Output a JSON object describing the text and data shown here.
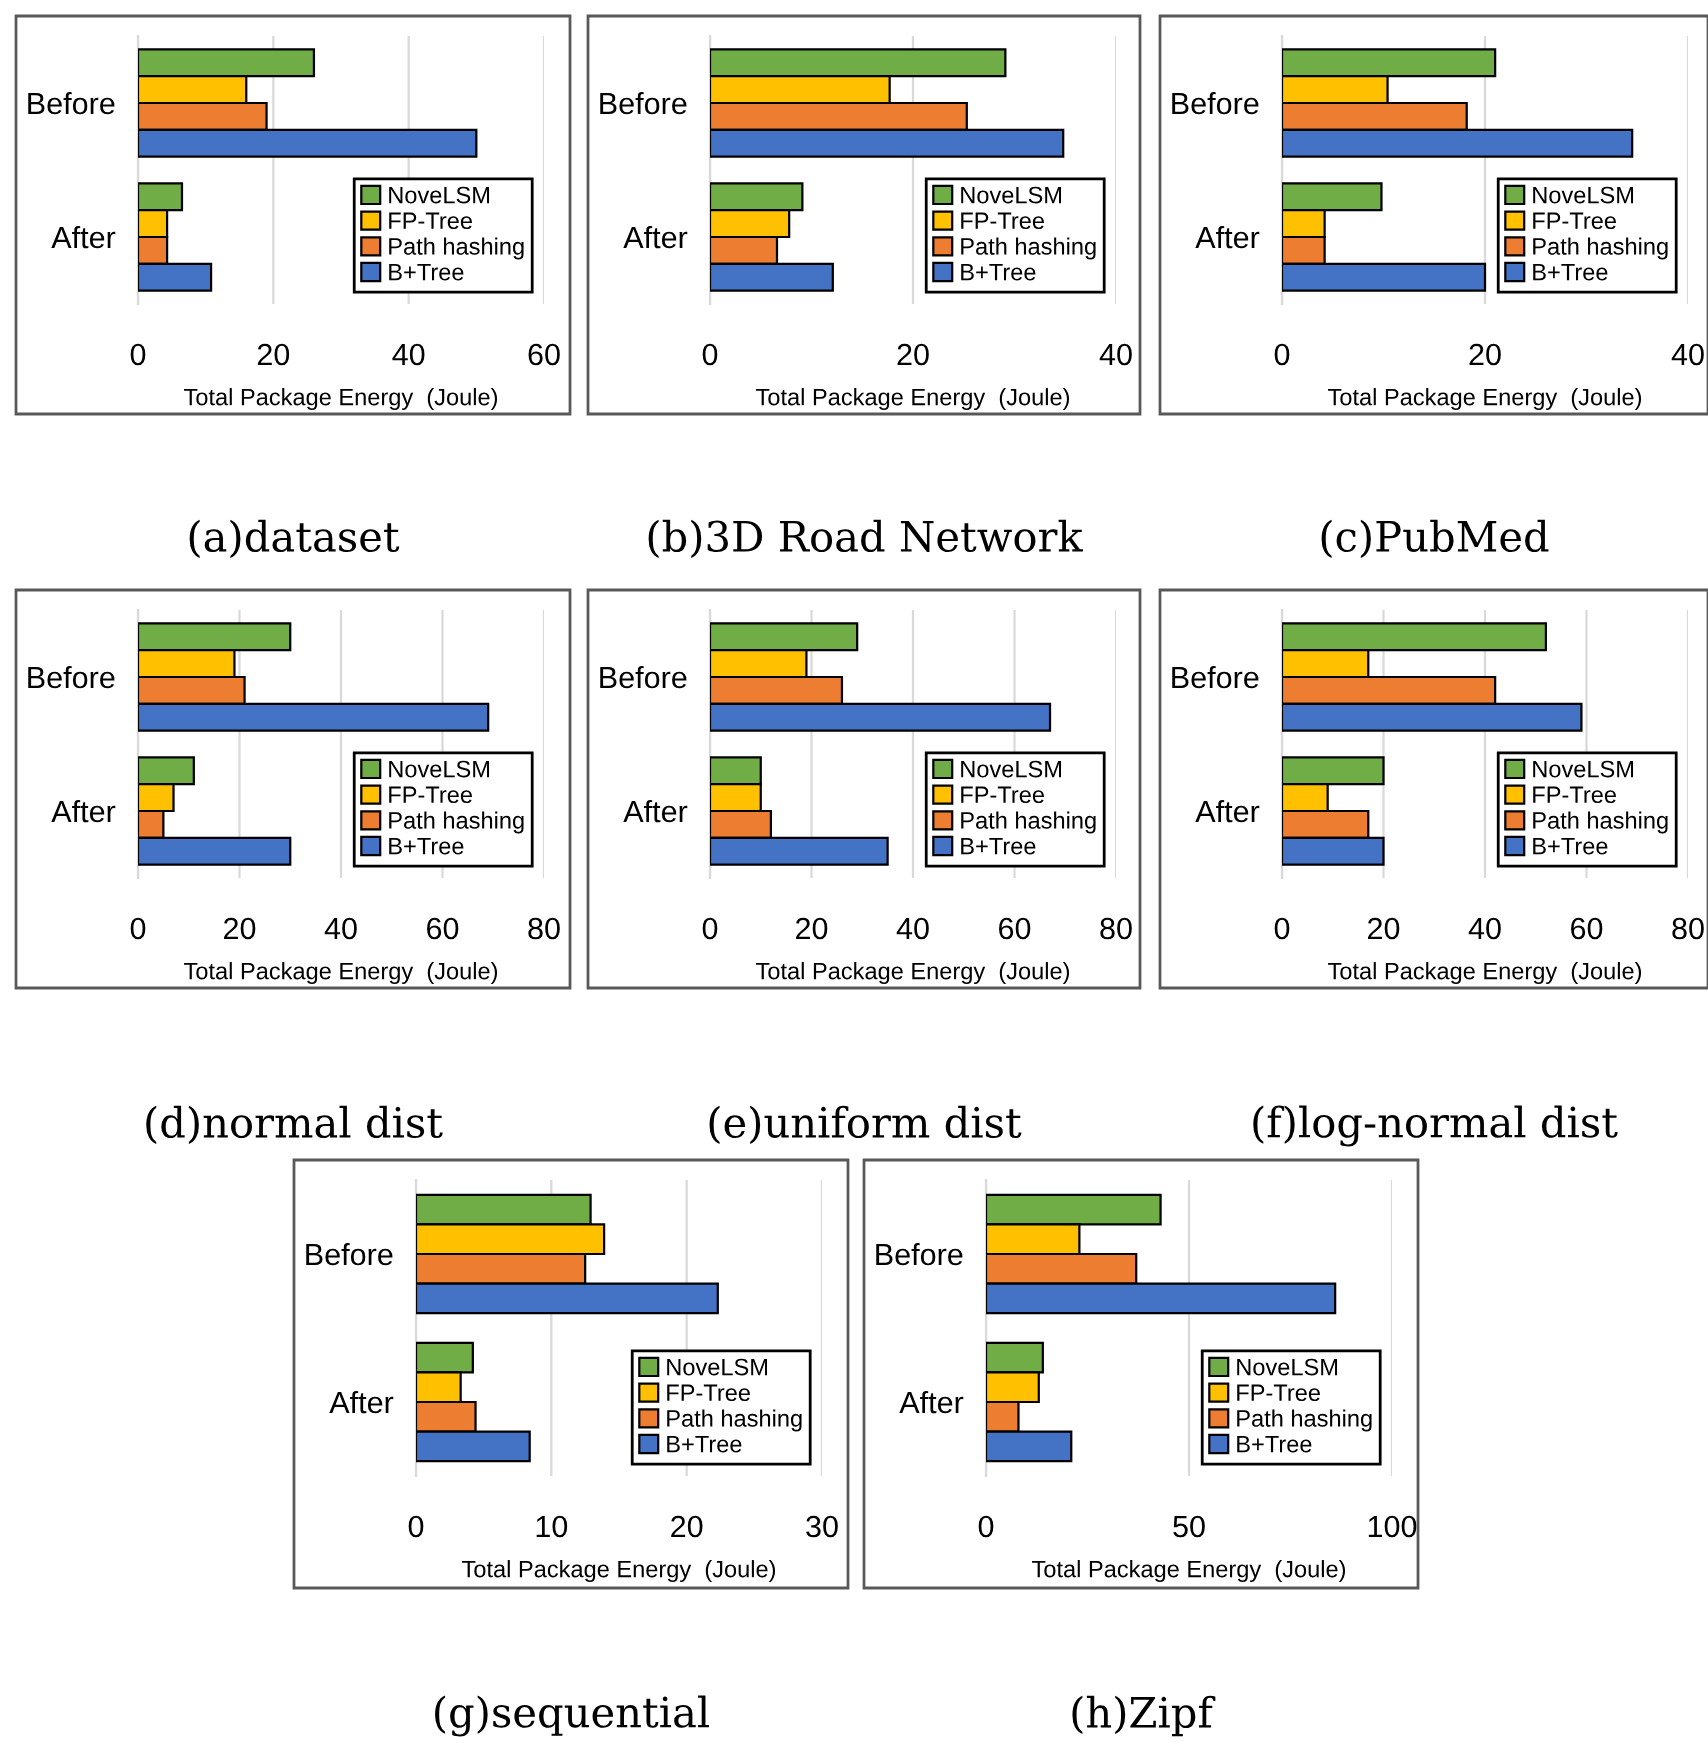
{
  "chart_data": [
    {
      "type": "bar",
      "orientation": "horizontal",
      "categories": [
        "Before",
        "After"
      ],
      "xlabel": "Total Package Energy  (Joule)",
      "xlim": [
        0,
        60
      ],
      "xticks": [
        0,
        20,
        40,
        60
      ],
      "grid": "x",
      "legend": "bottom right",
      "annotations": [
        "(a)dataset"
      ],
      "series": [
        {
          "name": "NoveLSM",
          "color": "#70ad47",
          "values": [
            26,
            6.5
          ]
        },
        {
          "name": "FP-Tree",
          "color": "#ffc000",
          "values": [
            16,
            4.3
          ]
        },
        {
          "name": "Path hashing",
          "color": "#ed7d31",
          "values": [
            19,
            4.3
          ]
        },
        {
          "name": "B+Tree",
          "color": "#4472c4",
          "values": [
            50,
            10.8
          ]
        }
      ]
    },
    {
      "type": "bar",
      "orientation": "horizontal",
      "categories": [
        "Before",
        "After"
      ],
      "xlabel": "Total Package Energy  (Joule)",
      "xlim": [
        0,
        40
      ],
      "xticks": [
        0,
        20,
        40
      ],
      "grid": "x",
      "legend": "bottom right",
      "annotations": [
        "(b)3D Road Network"
      ],
      "series": [
        {
          "name": "NoveLSM",
          "color": "#70ad47",
          "values": [
            29.1,
            9.1
          ]
        },
        {
          "name": "FP-Tree",
          "color": "#ffc000",
          "values": [
            17.7,
            7.8
          ]
        },
        {
          "name": "Path hashing",
          "color": "#ed7d31",
          "values": [
            25.3,
            6.6
          ]
        },
        {
          "name": "B+Tree",
          "color": "#4472c4",
          "values": [
            34.8,
            12.1
          ]
        }
      ]
    },
    {
      "type": "bar",
      "orientation": "horizontal",
      "categories": [
        "Before",
        "After"
      ],
      "xlabel": "Total Package Energy  (Joule)",
      "xlim": [
        0,
        40
      ],
      "xticks": [
        0,
        20,
        40
      ],
      "grid": "x",
      "legend": "bottom right",
      "annotations": [
        "(c)PubMed"
      ],
      "series": [
        {
          "name": "NoveLSM",
          "color": "#70ad47",
          "values": [
            21,
            9.8
          ]
        },
        {
          "name": "FP-Tree",
          "color": "#ffc000",
          "values": [
            10.4,
            4.2
          ]
        },
        {
          "name": "Path hashing",
          "color": "#ed7d31",
          "values": [
            18.2,
            4.2
          ]
        },
        {
          "name": "B+Tree",
          "color": "#4472c4",
          "values": [
            34.5,
            20
          ]
        }
      ]
    },
    {
      "type": "bar",
      "orientation": "horizontal",
      "categories": [
        "Before",
        "After"
      ],
      "xlabel": "Total Package Energy  (Joule)",
      "xlim": [
        0,
        80
      ],
      "xticks": [
        0,
        20,
        40,
        60,
        80
      ],
      "grid": "x",
      "legend": "bottom right",
      "annotations": [
        "(d)normal dist"
      ],
      "series": [
        {
          "name": "NoveLSM",
          "color": "#70ad47",
          "values": [
            30,
            11
          ]
        },
        {
          "name": "FP-Tree",
          "color": "#ffc000",
          "values": [
            19,
            7
          ]
        },
        {
          "name": "Path hashing",
          "color": "#ed7d31",
          "values": [
            21,
            5
          ]
        },
        {
          "name": "B+Tree",
          "color": "#4472c4",
          "values": [
            69,
            30
          ]
        }
      ]
    },
    {
      "type": "bar",
      "orientation": "horizontal",
      "categories": [
        "Before",
        "After"
      ],
      "xlabel": "Total Package Energy  (Joule)",
      "xlim": [
        0,
        80
      ],
      "xticks": [
        0,
        20,
        40,
        60,
        80
      ],
      "grid": "x",
      "legend": "bottom right",
      "annotations": [
        "(e)uniform dist"
      ],
      "series": [
        {
          "name": "NoveLSM",
          "color": "#70ad47",
          "values": [
            29,
            10
          ]
        },
        {
          "name": "FP-Tree",
          "color": "#ffc000",
          "values": [
            19,
            10
          ]
        },
        {
          "name": "Path hashing",
          "color": "#ed7d31",
          "values": [
            26,
            12
          ]
        },
        {
          "name": "B+Tree",
          "color": "#4472c4",
          "values": [
            67,
            35
          ]
        }
      ]
    },
    {
      "type": "bar",
      "orientation": "horizontal",
      "categories": [
        "Before",
        "After"
      ],
      "xlabel": "Total Package Energy  (Joule)",
      "xlim": [
        0,
        80
      ],
      "xticks": [
        0,
        20,
        40,
        60,
        80
      ],
      "grid": "x",
      "legend": "bottom right",
      "annotations": [
        "(f)log-normal dist"
      ],
      "series": [
        {
          "name": "NoveLSM",
          "color": "#70ad47",
          "values": [
            52,
            20
          ]
        },
        {
          "name": "FP-Tree",
          "color": "#ffc000",
          "values": [
            17,
            9
          ]
        },
        {
          "name": "Path hashing",
          "color": "#ed7d31",
          "values": [
            42,
            17
          ]
        },
        {
          "name": "B+Tree",
          "color": "#4472c4",
          "values": [
            59,
            20
          ]
        }
      ]
    },
    {
      "type": "bar",
      "orientation": "horizontal",
      "categories": [
        "Before",
        "After"
      ],
      "xlabel": "Total Package Energy  (Joule)",
      "xlim": [
        0,
        30
      ],
      "xticks": [
        0,
        10,
        20,
        30
      ],
      "grid": "x",
      "legend": "bottom right",
      "annotations": [
        "(g)sequential"
      ],
      "series": [
        {
          "name": "NoveLSM",
          "color": "#70ad47",
          "values": [
            12.9,
            4.2
          ]
        },
        {
          "name": "FP-Tree",
          "color": "#ffc000",
          "values": [
            13.9,
            3.3
          ]
        },
        {
          "name": "Path hashing",
          "color": "#ed7d31",
          "values": [
            12.5,
            4.4
          ]
        },
        {
          "name": "B+Tree",
          "color": "#4472c4",
          "values": [
            22.3,
            8.4
          ]
        }
      ]
    },
    {
      "type": "bar",
      "orientation": "horizontal",
      "categories": [
        "Before",
        "After"
      ],
      "xlabel": "Total Package Energy  (Joule)",
      "xlim": [
        0,
        100
      ],
      "xticks": [
        0,
        50,
        100
      ],
      "grid": "x",
      "legend": "bottom right",
      "annotations": [
        "(h)Zipf"
      ],
      "series": [
        {
          "name": "NoveLSM",
          "color": "#70ad47",
          "values": [
            43,
            14
          ]
        },
        {
          "name": "FP-Tree",
          "color": "#ffc000",
          "values": [
            23,
            13
          ]
        },
        {
          "name": "Path hashing",
          "color": "#ed7d31",
          "values": [
            37,
            8
          ]
        },
        {
          "name": "B+Tree",
          "color": "#4472c4",
          "values": [
            86,
            21
          ]
        }
      ]
    }
  ]
}
